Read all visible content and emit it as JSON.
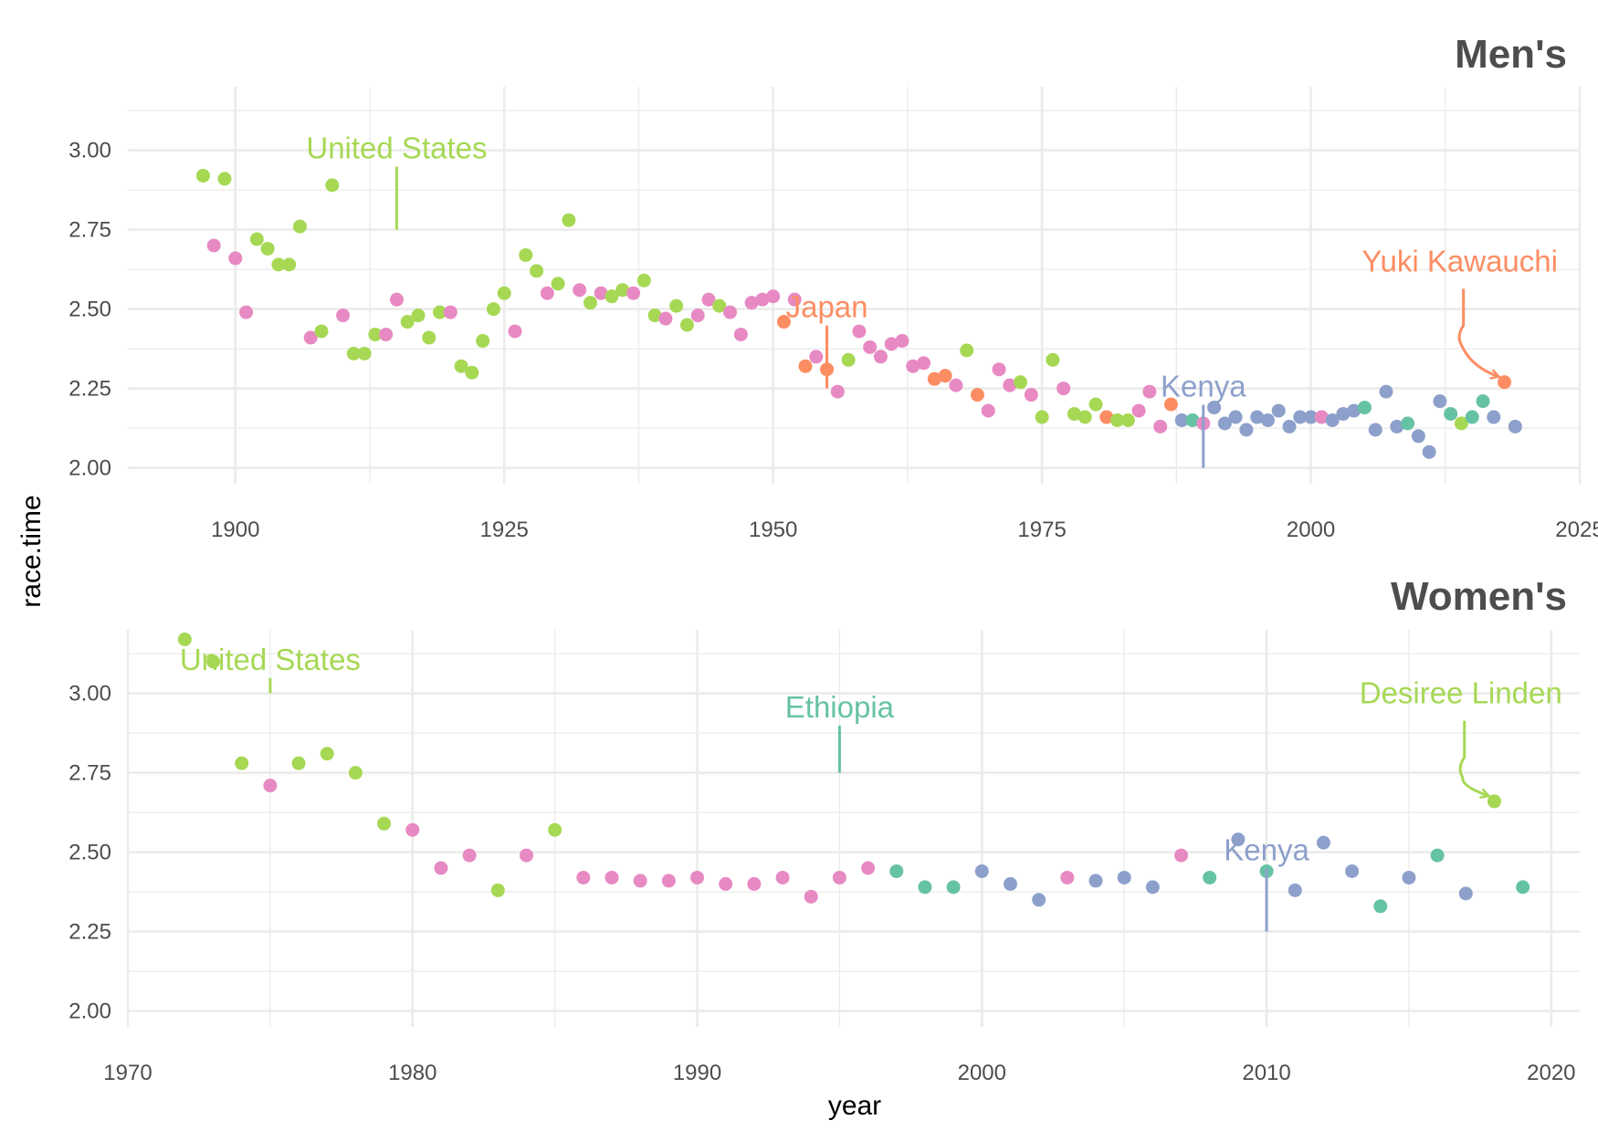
{
  "colors": {
    "United States": "#a6d854",
    "Japan": "#fc8d62",
    "Kenya": "#8da0cb",
    "Ethiopia": "#66c2a5",
    "Other": "#e78ac3"
  },
  "chart_data": {
    "type": "scatter",
    "ylabel": "race.time",
    "xlabel": "year",
    "panels": [
      {
        "title": "Men's",
        "xlim": [
          1890,
          2025
        ],
        "ylim": [
          1.95,
          3.2
        ],
        "x_ticks": [
          "1900",
          "1925",
          "1950",
          "1975",
          "2000",
          "2025"
        ],
        "x_tick_values": [
          1900,
          1925,
          1950,
          1975,
          2000,
          2025
        ],
        "y_ticks": [
          "2.00",
          "2.25",
          "2.50",
          "2.75",
          "3.00"
        ],
        "y_tick_values": [
          2.0,
          2.25,
          2.5,
          2.75,
          3.0
        ],
        "points": [
          [
            1897,
            2.92,
            "United States"
          ],
          [
            1898,
            2.7,
            "Other"
          ],
          [
            1899,
            2.91,
            "United States"
          ],
          [
            1900,
            2.66,
            "Other"
          ],
          [
            1901,
            2.49,
            "Other"
          ],
          [
            1902,
            2.72,
            "United States"
          ],
          [
            1903,
            2.69,
            "United States"
          ],
          [
            1904,
            2.64,
            "United States"
          ],
          [
            1905,
            2.64,
            "United States"
          ],
          [
            1906,
            2.76,
            "United States"
          ],
          [
            1907,
            2.41,
            "Other"
          ],
          [
            1908,
            2.43,
            "United States"
          ],
          [
            1909,
            2.89,
            "United States"
          ],
          [
            1910,
            2.48,
            "Other"
          ],
          [
            1911,
            2.36,
            "United States"
          ],
          [
            1912,
            2.36,
            "United States"
          ],
          [
            1913,
            2.42,
            "United States"
          ],
          [
            1914,
            2.42,
            "Other"
          ],
          [
            1915,
            2.53,
            "Other"
          ],
          [
            1916,
            2.46,
            "United States"
          ],
          [
            1917,
            2.48,
            "United States"
          ],
          [
            1918,
            2.41,
            "United States"
          ],
          [
            1919,
            2.49,
            "United States"
          ],
          [
            1920,
            2.49,
            "Other"
          ],
          [
            1921,
            2.32,
            "United States"
          ],
          [
            1922,
            2.3,
            "United States"
          ],
          [
            1923,
            2.4,
            "United States"
          ],
          [
            1924,
            2.5,
            "United States"
          ],
          [
            1925,
            2.55,
            "United States"
          ],
          [
            1926,
            2.43,
            "Other"
          ],
          [
            1927,
            2.67,
            "United States"
          ],
          [
            1928,
            2.62,
            "United States"
          ],
          [
            1929,
            2.55,
            "Other"
          ],
          [
            1930,
            2.58,
            "United States"
          ],
          [
            1931,
            2.78,
            "United States"
          ],
          [
            1932,
            2.56,
            "Other"
          ],
          [
            1933,
            2.52,
            "United States"
          ],
          [
            1934,
            2.55,
            "Other"
          ],
          [
            1935,
            2.54,
            "United States"
          ],
          [
            1936,
            2.56,
            "United States"
          ],
          [
            1937,
            2.55,
            "Other"
          ],
          [
            1938,
            2.59,
            "United States"
          ],
          [
            1939,
            2.48,
            "United States"
          ],
          [
            1940,
            2.47,
            "Other"
          ],
          [
            1941,
            2.51,
            "United States"
          ],
          [
            1942,
            2.45,
            "United States"
          ],
          [
            1943,
            2.48,
            "Other"
          ],
          [
            1944,
            2.53,
            "Other"
          ],
          [
            1945,
            2.51,
            "United States"
          ],
          [
            1946,
            2.49,
            "Other"
          ],
          [
            1947,
            2.42,
            "Other"
          ],
          [
            1948,
            2.52,
            "Other"
          ],
          [
            1949,
            2.53,
            "Other"
          ],
          [
            1950,
            2.54,
            "Other"
          ],
          [
            1951,
            2.46,
            "Japan"
          ],
          [
            1952,
            2.53,
            "Other"
          ],
          [
            1953,
            2.32,
            "Japan"
          ],
          [
            1954,
            2.35,
            "Other"
          ],
          [
            1955,
            2.31,
            "Japan"
          ],
          [
            1956,
            2.24,
            "Other"
          ],
          [
            1957,
            2.34,
            "United States"
          ],
          [
            1958,
            2.43,
            "Other"
          ],
          [
            1959,
            2.38,
            "Other"
          ],
          [
            1960,
            2.35,
            "Other"
          ],
          [
            1961,
            2.39,
            "Other"
          ],
          [
            1962,
            2.4,
            "Other"
          ],
          [
            1963,
            2.32,
            "Other"
          ],
          [
            1964,
            2.33,
            "Other"
          ],
          [
            1965,
            2.28,
            "Japan"
          ],
          [
            1966,
            2.29,
            "Japan"
          ],
          [
            1967,
            2.26,
            "Other"
          ],
          [
            1968,
            2.37,
            "United States"
          ],
          [
            1969,
            2.23,
            "Japan"
          ],
          [
            1970,
            2.18,
            "Other"
          ],
          [
            1971,
            2.31,
            "Other"
          ],
          [
            1972,
            2.26,
            "Other"
          ],
          [
            1973,
            2.27,
            "United States"
          ],
          [
            1974,
            2.23,
            "Other"
          ],
          [
            1975,
            2.16,
            "United States"
          ],
          [
            1976,
            2.34,
            "United States"
          ],
          [
            1977,
            2.25,
            "Other"
          ],
          [
            1978,
            2.17,
            "United States"
          ],
          [
            1979,
            2.16,
            "United States"
          ],
          [
            1980,
            2.2,
            "United States"
          ],
          [
            1981,
            2.16,
            "Japan"
          ],
          [
            1982,
            2.15,
            "United States"
          ],
          [
            1983,
            2.15,
            "United States"
          ],
          [
            1984,
            2.18,
            "Other"
          ],
          [
            1985,
            2.24,
            "Other"
          ],
          [
            1986,
            2.13,
            "Other"
          ],
          [
            1987,
            2.2,
            "Japan"
          ],
          [
            1988,
            2.15,
            "Kenya"
          ],
          [
            1989,
            2.15,
            "Ethiopia"
          ],
          [
            1990,
            2.14,
            "Other"
          ],
          [
            1991,
            2.19,
            "Kenya"
          ],
          [
            1992,
            2.14,
            "Kenya"
          ],
          [
            1993,
            2.16,
            "Kenya"
          ],
          [
            1994,
            2.12,
            "Kenya"
          ],
          [
            1995,
            2.16,
            "Kenya"
          ],
          [
            1996,
            2.15,
            "Kenya"
          ],
          [
            1997,
            2.18,
            "Kenya"
          ],
          [
            1998,
            2.13,
            "Kenya"
          ],
          [
            1999,
            2.16,
            "Kenya"
          ],
          [
            2000,
            2.16,
            "Kenya"
          ],
          [
            2001,
            2.16,
            "Other"
          ],
          [
            2002,
            2.15,
            "Kenya"
          ],
          [
            2003,
            2.17,
            "Kenya"
          ],
          [
            2004,
            2.18,
            "Kenya"
          ],
          [
            2005,
            2.19,
            "Ethiopia"
          ],
          [
            2006,
            2.12,
            "Kenya"
          ],
          [
            2007,
            2.24,
            "Kenya"
          ],
          [
            2008,
            2.13,
            "Kenya"
          ],
          [
            2009,
            2.14,
            "Ethiopia"
          ],
          [
            2010,
            2.1,
            "Kenya"
          ],
          [
            2011,
            2.05,
            "Kenya"
          ],
          [
            2012,
            2.21,
            "Kenya"
          ],
          [
            2013,
            2.17,
            "Ethiopia"
          ],
          [
            2014,
            2.14,
            "United States"
          ],
          [
            2015,
            2.16,
            "Ethiopia"
          ],
          [
            2016,
            2.21,
            "Ethiopia"
          ],
          [
            2017,
            2.16,
            "Kenya"
          ],
          [
            2018,
            2.27,
            "Japan"
          ],
          [
            2019,
            2.13,
            "Kenya"
          ]
        ],
        "annotations": [
          {
            "text": "United States",
            "country": "United States",
            "x": 1915,
            "y": 3.0,
            "type": "line",
            "to_y": 2.75
          },
          {
            "text": "Japan",
            "country": "Japan",
            "x": 1955,
            "y": 2.5,
            "type": "line",
            "to_y": 2.25
          },
          {
            "text": "Kenya",
            "country": "Kenya",
            "x": 1990,
            "y": 2.25,
            "type": "line",
            "to_y": 2.0
          },
          {
            "text": "Yuki Kawauchi",
            "country": "Japan",
            "x": 2013,
            "y": 2.65,
            "type": "arrow",
            "tip_x": 2018,
            "tip_y": 2.27
          }
        ]
      },
      {
        "title": "Women's",
        "xlim": [
          1970,
          2021
        ],
        "ylim": [
          1.95,
          3.2
        ],
        "x_ticks": [
          "1970",
          "1980",
          "1990",
          "2000",
          "2010",
          "2020"
        ],
        "x_tick_values": [
          1970,
          1980,
          1990,
          2000,
          2010,
          2020
        ],
        "y_ticks": [
          "2.00",
          "2.25",
          "2.50",
          "2.75",
          "3.00"
        ],
        "y_tick_values": [
          2.0,
          2.25,
          2.5,
          2.75,
          3.0
        ],
        "points": [
          [
            1972,
            3.17,
            "United States"
          ],
          [
            1973,
            3.1,
            "United States"
          ],
          [
            1974,
            2.78,
            "United States"
          ],
          [
            1975,
            2.71,
            "Other"
          ],
          [
            1976,
            2.78,
            "United States"
          ],
          [
            1977,
            2.81,
            "United States"
          ],
          [
            1978,
            2.75,
            "United States"
          ],
          [
            1979,
            2.59,
            "United States"
          ],
          [
            1980,
            2.57,
            "Other"
          ],
          [
            1981,
            2.45,
            "Other"
          ],
          [
            1982,
            2.49,
            "Other"
          ],
          [
            1983,
            2.38,
            "United States"
          ],
          [
            1984,
            2.49,
            "Other"
          ],
          [
            1985,
            2.57,
            "United States"
          ],
          [
            1986,
            2.42,
            "Other"
          ],
          [
            1987,
            2.42,
            "Other"
          ],
          [
            1988,
            2.41,
            "Other"
          ],
          [
            1989,
            2.41,
            "Other"
          ],
          [
            1990,
            2.42,
            "Other"
          ],
          [
            1991,
            2.4,
            "Other"
          ],
          [
            1992,
            2.4,
            "Other"
          ],
          [
            1993,
            2.42,
            "Other"
          ],
          [
            1994,
            2.36,
            "Other"
          ],
          [
            1995,
            2.42,
            "Other"
          ],
          [
            1996,
            2.45,
            "Other"
          ],
          [
            1997,
            2.44,
            "Ethiopia"
          ],
          [
            1998,
            2.39,
            "Ethiopia"
          ],
          [
            1999,
            2.39,
            "Ethiopia"
          ],
          [
            2000,
            2.44,
            "Kenya"
          ],
          [
            2001,
            2.4,
            "Kenya"
          ],
          [
            2002,
            2.35,
            "Kenya"
          ],
          [
            2003,
            2.42,
            "Other"
          ],
          [
            2004,
            2.41,
            "Kenya"
          ],
          [
            2005,
            2.42,
            "Kenya"
          ],
          [
            2006,
            2.39,
            "Kenya"
          ],
          [
            2007,
            2.49,
            "Other"
          ],
          [
            2008,
            2.42,
            "Ethiopia"
          ],
          [
            2009,
            2.54,
            "Kenya"
          ],
          [
            2010,
            2.44,
            "Ethiopia"
          ],
          [
            2011,
            2.38,
            "Kenya"
          ],
          [
            2012,
            2.53,
            "Kenya"
          ],
          [
            2013,
            2.44,
            "Kenya"
          ],
          [
            2014,
            2.33,
            "Ethiopia"
          ],
          [
            2015,
            2.42,
            "Kenya"
          ],
          [
            2016,
            2.49,
            "Ethiopia"
          ],
          [
            2017,
            2.37,
            "Kenya"
          ],
          [
            2018,
            2.66,
            "United States"
          ],
          [
            2019,
            2.39,
            "Ethiopia"
          ]
        ],
        "annotations": [
          {
            "text": "United States",
            "country": "United States",
            "x": 1975,
            "y": 3.1,
            "type": "line",
            "to_y": 3.0
          },
          {
            "text": "Ethiopia",
            "country": "Ethiopia",
            "x": 1995,
            "y": 2.95,
            "type": "line",
            "to_y": 2.75
          },
          {
            "text": "Kenya",
            "country": "Kenya",
            "x": 2010,
            "y": 2.5,
            "type": "line",
            "to_y": 2.25
          },
          {
            "text": "Desiree Linden",
            "country": "United States",
            "x": 2016.5,
            "y": 3.0,
            "type": "arrow",
            "tip_x": 2018,
            "tip_y": 2.66
          }
        ]
      }
    ]
  }
}
